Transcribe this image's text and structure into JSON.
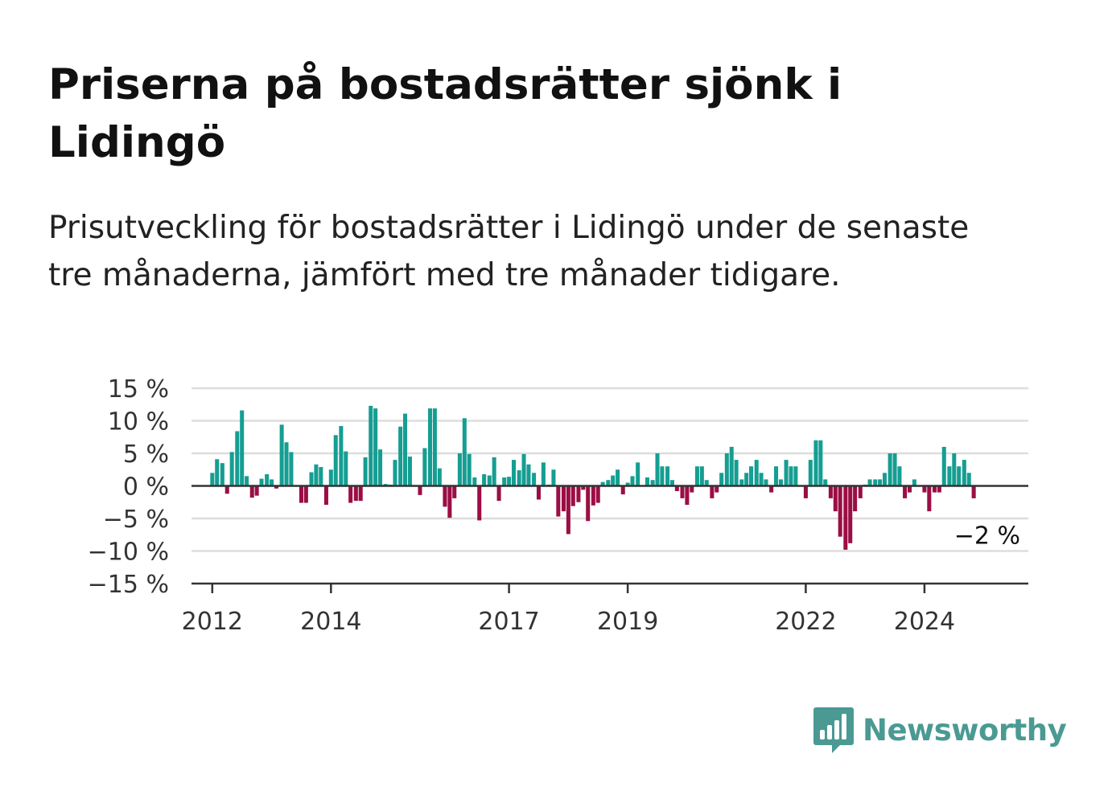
{
  "title": "Priserna på bostadsrätter sjönk i Lidingö",
  "subtitle": "Prisutveckling för bostadsrätter i Lidingö under de senaste tre månaderna, jämfört med tre månader tidigare.",
  "brand": {
    "name": "Newsworthy",
    "icon": "newsworthy-logo-icon",
    "color": "#4a9a93"
  },
  "colors": {
    "positive": "#159e92",
    "negative": "#9b0e45",
    "grid": "#dddddd",
    "axis": "#333333"
  },
  "chart_data": {
    "type": "bar",
    "xlim": [
      2011.65,
      2025.75
    ],
    "ylim": [
      -15,
      15
    ],
    "x_ticks": [
      {
        "value": 2012,
        "label": "2012"
      },
      {
        "value": 2014,
        "label": "2014"
      },
      {
        "value": 2017,
        "label": "2017"
      },
      {
        "value": 2019,
        "label": "2019"
      },
      {
        "value": 2022,
        "label": "2022"
      },
      {
        "value": 2024,
        "label": "2024"
      }
    ],
    "y_ticks": [
      {
        "value": 15,
        "label": "15 %"
      },
      {
        "value": 10,
        "label": "10 %"
      },
      {
        "value": 5,
        "label": "5 %"
      },
      {
        "value": 0,
        "label": "0 %"
      },
      {
        "value": -5,
        "label": "−5 %"
      },
      {
        "value": -10,
        "label": "−10 %"
      },
      {
        "value": -15,
        "label": "−15 %"
      }
    ],
    "grid": true,
    "annotation": {
      "text": "−2 %",
      "value": -2
    },
    "x": [
      2012.0,
      2012.08,
      2012.17,
      2012.25,
      2012.33,
      2012.42,
      2012.5,
      2012.58,
      2012.67,
      2012.75,
      2012.83,
      2012.92,
      2013.0,
      2013.08,
      2013.17,
      2013.25,
      2013.33,
      2013.42,
      2013.5,
      2013.58,
      2013.67,
      2013.75,
      2013.83,
      2013.92,
      2014.0,
      2014.08,
      2014.17,
      2014.25,
      2014.33,
      2014.42,
      2014.5,
      2014.58,
      2014.67,
      2014.75,
      2014.83,
      2014.92,
      2015.0,
      2015.08,
      2015.17,
      2015.25,
      2015.33,
      2015.42,
      2015.5,
      2015.58,
      2015.67,
      2015.75,
      2015.83,
      2015.92,
      2016.0,
      2016.08,
      2016.17,
      2016.25,
      2016.33,
      2016.42,
      2016.5,
      2016.58,
      2016.67,
      2016.75,
      2016.83,
      2016.92,
      2017.0,
      2017.08,
      2017.17,
      2017.25,
      2017.33,
      2017.42,
      2017.5,
      2017.58,
      2017.67,
      2017.75,
      2017.83,
      2017.92,
      2018.0,
      2018.08,
      2018.17,
      2018.25,
      2018.33,
      2018.42,
      2018.5,
      2018.58,
      2018.67,
      2018.75,
      2018.83,
      2018.92,
      2019.0,
      2019.08,
      2019.17,
      2019.25,
      2019.33,
      2019.42,
      2019.5,
      2019.58,
      2019.67,
      2019.75,
      2019.83,
      2019.92,
      2020.0,
      2020.08,
      2020.17,
      2020.25,
      2020.33,
      2020.42,
      2020.5,
      2020.58,
      2020.67,
      2020.75,
      2020.83,
      2020.92,
      2021.0,
      2021.08,
      2021.17,
      2021.25,
      2021.33,
      2021.42,
      2021.5,
      2021.58,
      2021.67,
      2021.75,
      2021.83,
      2021.92,
      2022.0,
      2022.08,
      2022.17,
      2022.25,
      2022.33,
      2022.42,
      2022.5,
      2022.58,
      2022.67,
      2022.75,
      2022.83,
      2022.92,
      2023.0,
      2023.08,
      2023.17,
      2023.25,
      2023.33,
      2023.42,
      2023.5,
      2023.58,
      2023.67,
      2023.75,
      2023.83,
      2023.92,
      2024.0,
      2024.08,
      2024.17,
      2024.25,
      2024.33,
      2024.42,
      2024.5,
      2024.58,
      2024.67,
      2024.75,
      2024.83
    ],
    "values": [
      2.0,
      4.1,
      3.5,
      -1.2,
      5.2,
      8.4,
      11.6,
      1.5,
      -1.8,
      -1.5,
      1.1,
      1.8,
      1.0,
      -0.4,
      9.4,
      6.7,
      5.2,
      0.1,
      -2.6,
      -2.6,
      2.1,
      3.3,
      2.9,
      -2.9,
      2.5,
      7.8,
      9.2,
      5.3,
      -2.6,
      -2.3,
      -2.3,
      4.4,
      12.3,
      11.9,
      5.6,
      0.3,
      0.2,
      4.0,
      9.1,
      11.1,
      4.5,
      0.1,
      -1.4,
      5.8,
      11.9,
      11.9,
      2.7,
      -3.2,
      -4.9,
      -1.9,
      5.0,
      10.4,
      4.9,
      1.3,
      -5.3,
      1.8,
      1.6,
      4.4,
      -2.3,
      1.3,
      1.4,
      4.0,
      2.4,
      4.9,
      3.3,
      2.0,
      -2.1,
      3.6,
      0.2,
      2.5,
      -4.7,
      -3.9,
      -7.4,
      -3.1,
      -2.5,
      -0.6,
      -5.4,
      -3.0,
      -2.6,
      0.6,
      0.9,
      1.6,
      2.5,
      -1.3,
      0.5,
      1.5,
      3.6,
      0.1,
      1.3,
      0.9,
      5.0,
      3.0,
      3.0,
      0.9,
      -0.8,
      -1.9,
      -2.9,
      -1.0,
      3.0,
      3.0,
      0.9,
      -1.9,
      -1.0,
      2.0,
      5.0,
      6.0,
      4.0,
      1.0,
      2.0,
      3.0,
      4.0,
      2.0,
      1.0,
      -1.0,
      3.0,
      1.0,
      4.0,
      3.0,
      3.0,
      0.1,
      -1.9,
      4.0,
      7.0,
      7.0,
      1.0,
      -1.9,
      -3.9,
      -7.8,
      -9.8,
      -8.8,
      -3.9,
      -1.9,
      0.2,
      1.0,
      1.0,
      1.0,
      2.0,
      5.0,
      5.0,
      3.0,
      -1.9,
      -1.0,
      1.0,
      0.1,
      -1.0,
      -3.9,
      -1.0,
      -1.0,
      6.0,
      3.0,
      5.0,
      3.0,
      4.0,
      2.0,
      -1.9
    ]
  }
}
